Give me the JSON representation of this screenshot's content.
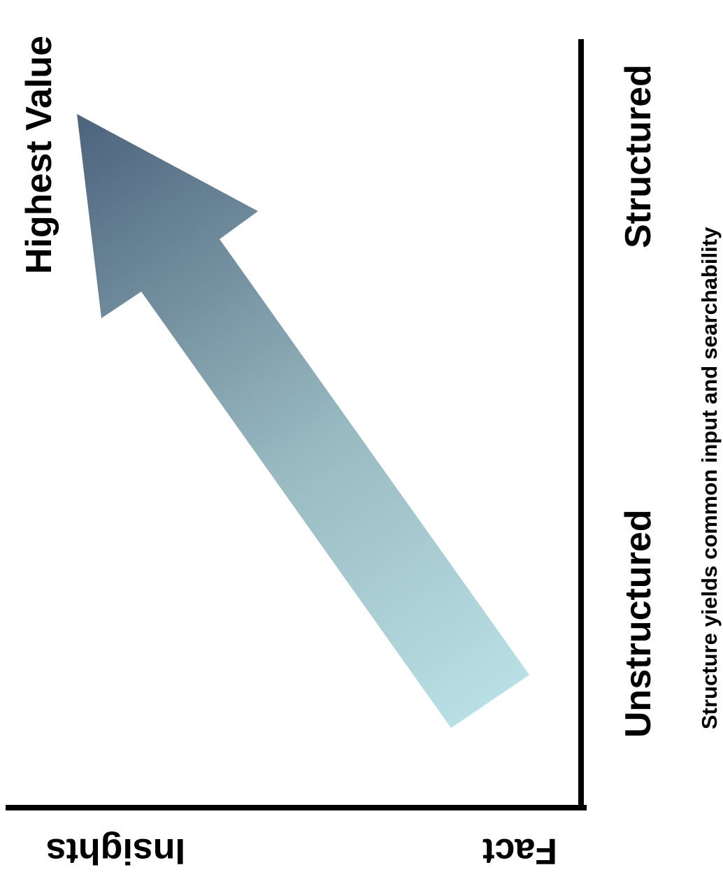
{
  "labels": {
    "highest_value": "Highest Value",
    "structured": "Structured",
    "unstructured": "Unstructured",
    "caption": "Structure yields common input and searchability",
    "insights": "Insights",
    "fact": "Fact"
  },
  "colors": {
    "arrow_start": "#b9e1e5",
    "arrow_end": "#4f667f",
    "axis": "#000000",
    "text": "#000000"
  }
}
